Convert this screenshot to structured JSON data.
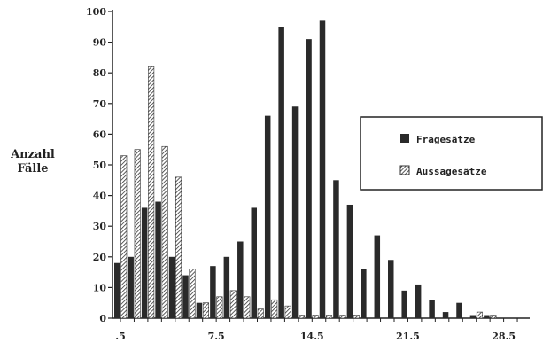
{
  "chart_data": {
    "type": "bar",
    "ylabel_lines": [
      "Anzahl",
      "Fälle"
    ],
    "xlabel": "",
    "ylim": [
      0,
      100
    ],
    "yticks": [
      0,
      10,
      20,
      30,
      40,
      50,
      60,
      70,
      80,
      90,
      100
    ],
    "xticks": [
      ".5",
      "7.5",
      "14.5",
      "21.5",
      "28.5"
    ],
    "x": [
      0.5,
      1.5,
      2.5,
      3.5,
      4.5,
      5.5,
      6.5,
      7.5,
      8.5,
      9.5,
      10.5,
      11.5,
      12.5,
      13.5,
      14.5,
      15.5,
      16.5,
      17.5,
      18.5,
      19.5,
      20.5,
      21.5,
      22.5,
      23.5,
      24.5,
      25.5,
      26.5,
      27.5
    ],
    "series": [
      {
        "name": "Fragesätze",
        "values": [
          18,
          20,
          36,
          38,
          20,
          14,
          5,
          17,
          20,
          25,
          36,
          66,
          95,
          69,
          91,
          97,
          45,
          37,
          16,
          27,
          19,
          9,
          11,
          6,
          2,
          5,
          1,
          1
        ]
      },
      {
        "name": "Aussagesätze",
        "values": [
          53,
          55,
          82,
          56,
          46,
          16,
          5,
          7,
          9,
          7,
          3,
          6,
          4,
          1,
          1,
          1,
          1,
          1,
          0,
          0,
          0,
          0,
          0,
          0,
          0,
          0,
          2,
          1
        ]
      }
    ],
    "legend": {
      "position": "right",
      "entries": [
        "Fragesätze",
        "Aussagesätze"
      ]
    },
    "colors": {
      "fragesaetze": "#2a2a2a",
      "aussagesaetze_hatch": "#333333",
      "axis": "#222222"
    }
  }
}
